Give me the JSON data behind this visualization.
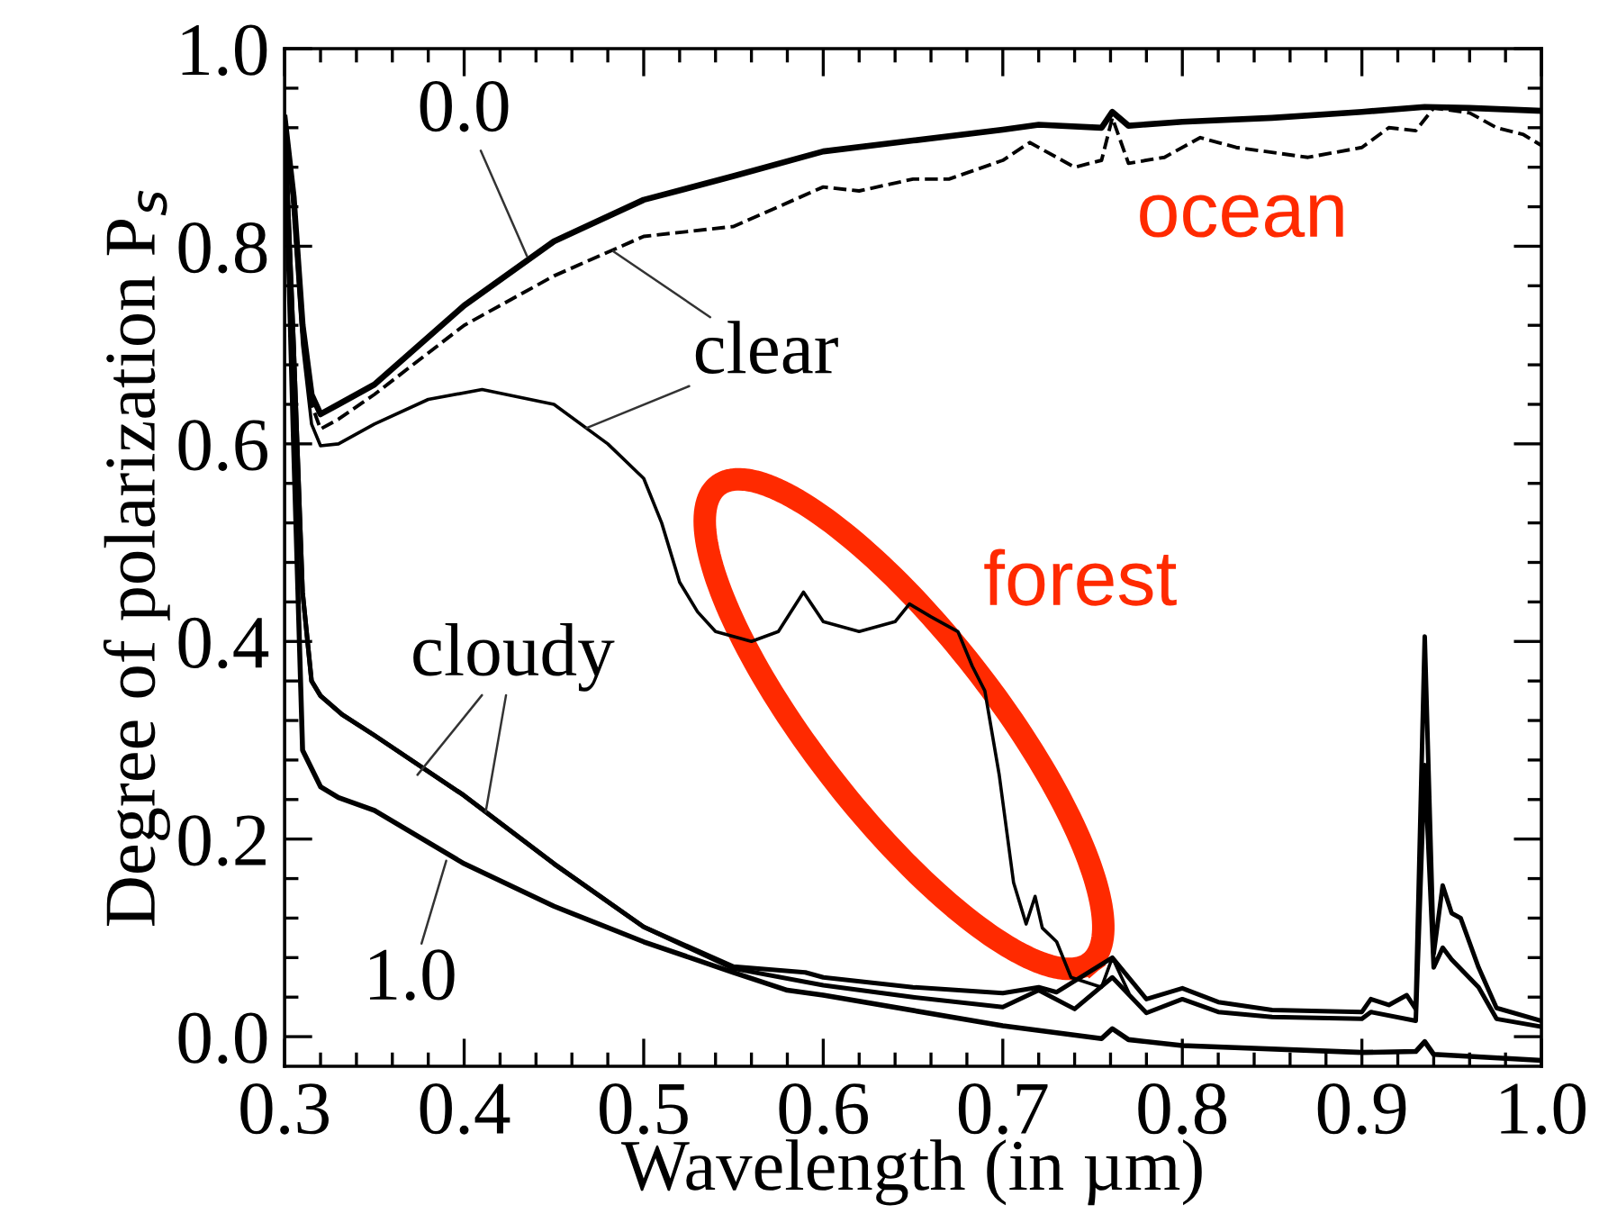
{
  "chart_data": {
    "type": "line",
    "xlabel": "Wavelength (in µm)",
    "ylabel": "Degree of polarization P$_{s}$",
    "xlim": [
      0.3,
      1.0
    ],
    "ylim": [
      -0.03,
      1.0
    ],
    "xticks": [
      0.3,
      0.4,
      0.5,
      0.6,
      0.7,
      0.8,
      0.9,
      {
        "value": 1,
        "label": "1.0"
      },
      {
        "value": 0.32,
        "label": null
      },
      {
        "value": 0.34,
        "label": null
      },
      {
        "value": 0.36,
        "label": null
      },
      {
        "value": 0.38,
        "label": null
      },
      {
        "value": 0.42,
        "label": null
      },
      {
        "value": 0.44,
        "label": null
      },
      {
        "value": 0.46,
        "label": null
      },
      {
        "value": 0.48,
        "label": null
      },
      {
        "value": 0.52,
        "label": null
      },
      {
        "value": 0.54,
        "label": null
      },
      {
        "value": 0.56,
        "label": null
      },
      {
        "value": 0.58,
        "label": null
      },
      {
        "value": 0.62,
        "label": null
      },
      {
        "value": 0.64,
        "label": null
      },
      {
        "value": 0.66,
        "label": null
      },
      {
        "value": 0.68,
        "label": null
      },
      {
        "value": 0.72,
        "label": null
      },
      {
        "value": 0.74,
        "label": null
      },
      {
        "value": 0.76,
        "label": null
      },
      {
        "value": 0.78,
        "label": null
      },
      {
        "value": 0.82,
        "label": null
      },
      {
        "value": 0.84,
        "label": null
      },
      {
        "value": 0.86,
        "label": null
      },
      {
        "value": 0.88,
        "label": null
      },
      {
        "value": 0.92,
        "label": null
      },
      {
        "value": 0.94,
        "label": null
      },
      {
        "value": 0.96,
        "label": null
      },
      {
        "value": 0.98,
        "label": null
      }
    ],
    "yticks": [
      {
        "value": 0,
        "label": "0.0"
      },
      0.2,
      0.4,
      0.6,
      0.8,
      {
        "value": 1,
        "label": "1.0"
      },
      {
        "value": 0.04,
        "label": null
      },
      {
        "value": 0.08,
        "label": null
      },
      {
        "value": 0.12,
        "label": null
      },
      {
        "value": 0.16,
        "label": null
      },
      {
        "value": 0.24,
        "label": null
      },
      {
        "value": 0.28,
        "label": null
      },
      {
        "value": 0.32,
        "label": null
      },
      {
        "value": 0.36,
        "label": null
      },
      {
        "value": 0.44,
        "label": null
      },
      {
        "value": 0.48,
        "label": null
      },
      {
        "value": 0.52,
        "label": null
      },
      {
        "value": 0.56,
        "label": null
      },
      {
        "value": 0.64,
        "label": null
      },
      {
        "value": 0.68,
        "label": null
      },
      {
        "value": 0.72,
        "label": null
      },
      {
        "value": 0.76,
        "label": null
      },
      {
        "value": 0.84,
        "label": null
      },
      {
        "value": 0.88,
        "label": null
      },
      {
        "value": 0.92,
        "label": null
      },
      {
        "value": 0.96,
        "label": null
      }
    ],
    "grid": false,
    "legend": false,
    "marker": "none",
    "series": [
      {
        "color": "#000000",
        "line_style": "solid",
        "x": [
          0.3,
          0.305,
          0.31,
          0.315,
          0.32,
          0.33,
          0.35,
          0.4,
          0.45,
          0.5,
          0.55,
          0.6,
          0.65,
          0.7,
          0.72,
          0.755,
          0.761,
          0.77,
          0.8,
          0.85,
          0.9,
          0.935,
          0.96,
          1.0
        ],
        "values": [
          0.93,
          0.85,
          0.72,
          0.65,
          0.63,
          0.64,
          0.66,
          0.74,
          0.805,
          0.847,
          0.871,
          0.896,
          0.907,
          0.918,
          0.923,
          0.92,
          0.936,
          0.922,
          0.926,
          0.93,
          0.936,
          0.941,
          0.94,
          0.937
        ]
      },
      {
        "color": "#000000",
        "line_style": "dashed",
        "x": [
          0.3,
          0.305,
          0.31,
          0.315,
          0.32,
          0.33,
          0.35,
          0.4,
          0.45,
          0.5,
          0.55,
          0.6,
          0.62,
          0.65,
          0.67,
          0.7,
          0.715,
          0.74,
          0.755,
          0.761,
          0.77,
          0.79,
          0.81,
          0.83,
          0.87,
          0.9,
          0.915,
          0.93,
          0.94,
          0.96,
          0.975,
          0.99,
          1.0
        ],
        "values": [
          0.93,
          0.85,
          0.71,
          0.64,
          0.615,
          0.625,
          0.65,
          0.72,
          0.77,
          0.81,
          0.82,
          0.86,
          0.856,
          0.868,
          0.868,
          0.887,
          0.905,
          0.88,
          0.887,
          0.93,
          0.884,
          0.89,
          0.91,
          0.9,
          0.89,
          0.9,
          0.92,
          0.917,
          0.94,
          0.935,
          0.92,
          0.913,
          0.902
        ]
      },
      {
        "color": "#000000",
        "line_style": "solid",
        "x": [
          0.3,
          0.305,
          0.31,
          0.315,
          0.32,
          0.33,
          0.35,
          0.38,
          0.41,
          0.45,
          0.48,
          0.5,
          0.51,
          0.52,
          0.53,
          0.54,
          0.56,
          0.575,
          0.589,
          0.6,
          0.62,
          0.64,
          0.648,
          0.66,
          0.675,
          0.683,
          0.69,
          0.698,
          0.706,
          0.713,
          0.718,
          0.722,
          0.73,
          0.738,
          0.755,
          0.761,
          0.77
        ],
        "values": [
          0.93,
          0.84,
          0.7,
          0.62,
          0.598,
          0.6,
          0.62,
          0.645,
          0.655,
          0.64,
          0.6,
          0.565,
          0.52,
          0.46,
          0.43,
          0.41,
          0.4,
          0.41,
          0.45,
          0.42,
          0.41,
          0.42,
          0.438,
          0.425,
          0.41,
          0.375,
          0.35,
          0.265,
          0.156,
          0.114,
          0.142,
          0.11,
          0.096,
          0.06,
          0.05,
          0.08,
          0.045
        ]
      },
      {
        "color": "#000000",
        "line_style": "solid",
        "x": [
          0.3,
          0.305,
          0.31,
          0.315,
          0.32,
          0.332,
          0.35,
          0.4,
          0.45,
          0.5,
          0.55,
          0.59,
          0.6,
          0.65,
          0.7,
          0.72,
          0.73,
          0.761,
          0.78,
          0.8,
          0.82,
          0.85,
          0.9,
          0.905,
          0.915,
          0.925,
          0.93,
          0.935,
          0.94,
          0.945,
          0.95,
          0.955,
          0.965,
          0.975,
          1.0
        ],
        "values": [
          0.93,
          0.7,
          0.45,
          0.36,
          0.345,
          0.326,
          0.305,
          0.244,
          0.175,
          0.111,
          0.071,
          0.065,
          0.06,
          0.05,
          0.044,
          0.05,
          0.045,
          0.08,
          0.038,
          0.049,
          0.035,
          0.027,
          0.025,
          0.038,
          0.032,
          0.042,
          0.028,
          0.405,
          0.084,
          0.153,
          0.125,
          0.12,
          0.07,
          0.029,
          0.016
        ]
      },
      {
        "color": "#000000",
        "line_style": "solid",
        "x": [
          0.3,
          0.305,
          0.31,
          0.315,
          0.32,
          0.332,
          0.35,
          0.4,
          0.45,
          0.5,
          0.55,
          0.6,
          0.65,
          0.7,
          0.72,
          0.74,
          0.761,
          0.78,
          0.8,
          0.82,
          0.85,
          0.9,
          0.905,
          0.93,
          0.935,
          0.94,
          0.945,
          0.95,
          0.965,
          0.975,
          1.0
        ],
        "values": [
          0.93,
          0.7,
          0.45,
          0.36,
          0.345,
          0.326,
          0.305,
          0.244,
          0.175,
          0.111,
          0.069,
          0.052,
          0.04,
          0.03,
          0.047,
          0.028,
          0.06,
          0.024,
          0.038,
          0.025,
          0.02,
          0.018,
          0.025,
          0.016,
          0.275,
          0.07,
          0.09,
          0.078,
          0.05,
          0.018,
          0.01
        ]
      },
      {
        "color": "#000000",
        "line_style": "solid",
        "x": [
          0.3,
          0.305,
          0.31,
          0.32,
          0.33,
          0.35,
          0.4,
          0.45,
          0.5,
          0.55,
          0.58,
          0.6,
          0.7,
          0.755,
          0.761,
          0.77,
          0.8,
          0.9,
          0.93,
          0.935,
          0.94,
          1.0
        ],
        "values": [
          0.93,
          0.6,
          0.29,
          0.253,
          0.242,
          0.229,
          0.175,
          0.132,
          0.096,
          0.065,
          0.047,
          0.042,
          0.011,
          -0.002,
          0.008,
          -0.003,
          -0.009,
          -0.016,
          -0.015,
          -0.005,
          -0.018,
          -0.024
        ]
      }
    ],
    "annotations": [
      {
        "text": "0.0",
        "x": 0.435,
        "y": 0.79
      },
      {
        "text": "clear",
        "x": 0.483,
        "y": 0.795
      },
      {
        "text": "cloudy",
        "x": 0.374,
        "y": 0.265
      },
      {
        "text": "1.0",
        "x": 0.39,
        "y": 0.178
      },
      "ocean",
      "forest"
    ]
  }
}
